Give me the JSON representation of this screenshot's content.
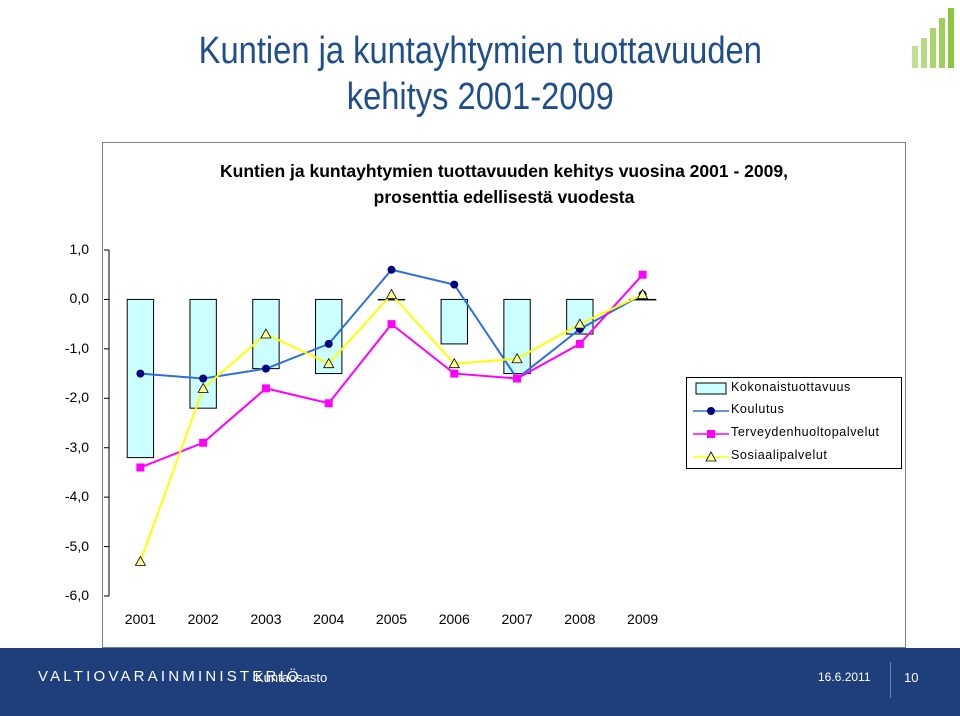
{
  "slide": {
    "title_line1": "Kuntien ja kuntayhtymien tuottavuuden",
    "title_line2": "kehitys 2001-2009"
  },
  "footer": {
    "brand": "VALTIOVARAINMINISTERIÖ",
    "unit": "Kuntaosasto",
    "date": "16.6.2011",
    "page": "10",
    "background_color": "#1f3f7c"
  },
  "logo": {
    "icon": "bar-growth-logo-icon",
    "color": "#8dc63f"
  },
  "chart_data": {
    "type": "bar",
    "title_line1": "Kuntien ja kuntayhtymien tuottavuuden kehitys vuosina 2001 - 2009,",
    "title_line2": "prosenttia edellisestä vuodesta",
    "categories": [
      "2001",
      "2002",
      "2003",
      "2004",
      "2005",
      "2006",
      "2007",
      "2008",
      "2009"
    ],
    "ylim": [
      -6,
      1
    ],
    "y_ticks": [
      "1,0",
      "0,0",
      "-1,0",
      "-2,0",
      "-3,0",
      "-4,0",
      "-5,0",
      "-6,0"
    ],
    "y_tick_values": [
      1,
      0,
      -1,
      -2,
      -3,
      -4,
      -5,
      -6
    ],
    "grid": false,
    "legend_position": "right",
    "series": [
      {
        "name": "Kokonaistuottavuus",
        "kind": "bar",
        "color": "#ccffff",
        "edge": "#000000",
        "values": [
          -3.2,
          -2.2,
          -1.4,
          -1.5,
          0.0,
          -0.9,
          -1.5,
          -0.7,
          0.0
        ]
      },
      {
        "name": "Koulutus",
        "kind": "line",
        "marker": "circle",
        "color": "#2e6fdf",
        "marker_color": "#000080",
        "values": [
          -1.5,
          -1.6,
          -1.4,
          -0.9,
          0.6,
          0.3,
          -1.6,
          -0.6,
          0.1
        ]
      },
      {
        "name": "Terveydenhuoltopalvelut",
        "kind": "line",
        "marker": "square",
        "color": "#ff00ff",
        "marker_color": "#ff00ff",
        "values": [
          -3.4,
          -2.9,
          -1.8,
          -2.1,
          -0.5,
          -1.5,
          -1.6,
          -0.9,
          0.5
        ]
      },
      {
        "name": "Sosiaalipalvelut",
        "kind": "line",
        "marker": "triangle",
        "color": "#ffff00",
        "marker_color": "#ffff99",
        "values": [
          -5.3,
          -1.8,
          -0.7,
          -1.3,
          0.1,
          -1.3,
          -1.2,
          -0.5,
          0.1
        ]
      }
    ]
  }
}
